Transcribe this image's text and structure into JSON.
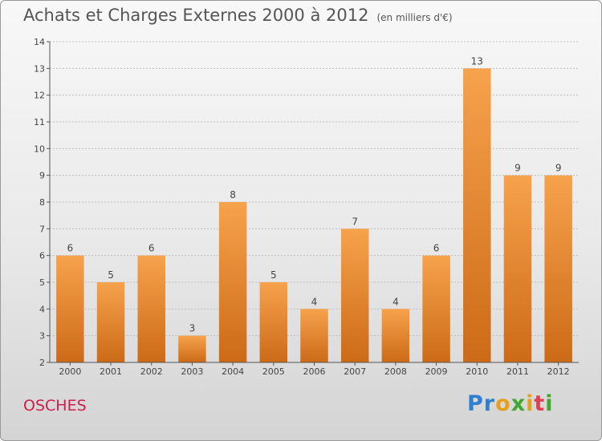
{
  "header": {
    "title": "Achats et Charges Externes 2000 à 2012",
    "subtitle": "(en milliers d'€)"
  },
  "footer": {
    "commune": "OSCHES",
    "logo": [
      {
        "ch": "P",
        "color": "#2f7fd0"
      },
      {
        "ch": "r",
        "color": "#2f7fd0"
      },
      {
        "ch": "o",
        "color": "#e6a020"
      },
      {
        "ch": "x",
        "color": "#43a830"
      },
      {
        "ch": "i",
        "color": "#e6a020"
      },
      {
        "ch": "t",
        "color": "#e04050"
      },
      {
        "ch": "i",
        "color": "#43a830"
      }
    ]
  },
  "colors": {
    "bar_light": "#f7a24c",
    "bar_dark": "#cc6a17",
    "title": "#555555",
    "commune": "#cc1f4d"
  },
  "chart_data": {
    "type": "bar",
    "title": "Achats et Charges Externes 2000 à 2012",
    "subtitle": "(en milliers d'€)",
    "categories": [
      "2000",
      "2001",
      "2002",
      "2003",
      "2004",
      "2005",
      "2006",
      "2007",
      "2008",
      "2009",
      "2010",
      "2011",
      "2012"
    ],
    "values": [
      6,
      5,
      6,
      3,
      8,
      5,
      4,
      7,
      4,
      6,
      13,
      9,
      9
    ],
    "ylim": [
      2,
      14
    ],
    "yticks": [
      2,
      3,
      4,
      5,
      6,
      7,
      8,
      9,
      10,
      11,
      12,
      13,
      14
    ],
    "grid": true,
    "legend": "none"
  }
}
